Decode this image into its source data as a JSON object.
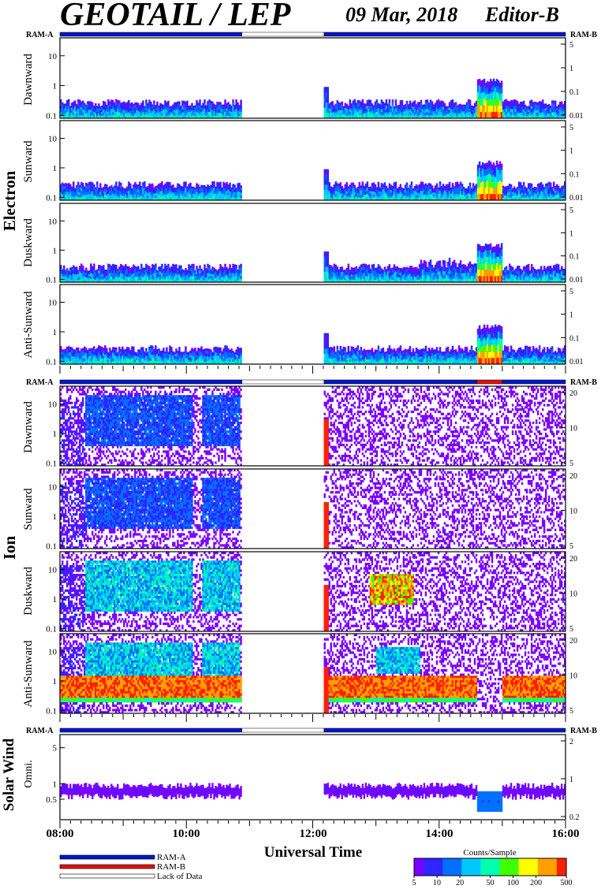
{
  "header": {
    "title": "GEOTAIL / LEP",
    "date": "09 Mar, 2018",
    "editor": "Editor-B"
  },
  "ram_labels": {
    "left": "RAM-A",
    "right": "RAM-B"
  },
  "groups": {
    "electron": "Electron",
    "ion": "Ion",
    "solar_wind": "Solar Wind"
  },
  "panel_labels": {
    "dawnward": "Dawnward",
    "sunward": "Sunward",
    "duskward": "Duskward",
    "anti_sunward": "Anti-Sunward",
    "omni": "Omni."
  },
  "colors": {
    "ram_a": "#0018c8",
    "ram_b": "#e01010",
    "lack_of_data": "#ffffff",
    "colormap": [
      "#7a00ff",
      "#2f25ff",
      "#0070ff",
      "#00c8ff",
      "#00ffb0",
      "#40ff00",
      "#ffff00",
      "#ffa000",
      "#ff2000"
    ]
  },
  "legend": {
    "items": [
      "RAM-A",
      "RAM-B",
      "Lack of Data"
    ],
    "colorbar_title": "Counts/Sample",
    "colorbar_ticks": [
      "5",
      "10",
      "20",
      "50",
      "100",
      "200",
      "500"
    ]
  },
  "axis": {
    "xlabel": "Universal Time",
    "ticks": [
      "08:00",
      "10:00",
      "12:00",
      "14:00",
      "16:00"
    ]
  },
  "chart_data": {
    "type": "heatmap",
    "x_range_hours": [
      8,
      16
    ],
    "x_tick_hours": [
      8,
      10,
      12,
      14,
      16
    ],
    "status_bar": {
      "segments": [
        {
          "start": 8.0,
          "end": 10.88,
          "state": "RAM-A"
        },
        {
          "start": 10.88,
          "end": 12.18,
          "state": "Lack of Data"
        },
        {
          "start": 12.18,
          "end": 16.0,
          "state": "RAM-A"
        }
      ],
      "ion_segments": [
        {
          "start": 8.0,
          "end": 10.88,
          "state": "RAM-A"
        },
        {
          "start": 10.88,
          "end": 12.18,
          "state": "Lack of Data"
        },
        {
          "start": 12.18,
          "end": 14.6,
          "state": "RAM-A"
        },
        {
          "start": 14.6,
          "end": 15.0,
          "state": "RAM-B"
        },
        {
          "start": 15.0,
          "end": 16.0,
          "state": "RAM-A"
        }
      ]
    },
    "data_gap_hours": [
      10.88,
      12.18
    ],
    "electron_left_ticks": [
      "0.1",
      "1",
      "10"
    ],
    "electron_right_ticks": [
      "0.01",
      "0.1",
      "1",
      "5"
    ],
    "ion_left_ticks": [
      "0.1",
      "1",
      "10"
    ],
    "ion_right_ticks": [
      "5",
      "10",
      "20"
    ],
    "solar_wind_left_ticks": [
      "0.5",
      "1",
      "5"
    ],
    "solar_wind_right_ticks": [
      "0.2",
      "1",
      "2"
    ],
    "panels": [
      {
        "group": "electron",
        "label": "Dawnward",
        "ymin": 0.08,
        "ymax": 40
      },
      {
        "group": "electron",
        "label": "Sunward",
        "ymin": 0.08,
        "ymax": 40
      },
      {
        "group": "electron",
        "label": "Duskward",
        "ymin": 0.08,
        "ymax": 40
      },
      {
        "group": "electron",
        "label": "Anti-Sunward",
        "ymin": 0.08,
        "ymax": 40
      },
      {
        "group": "ion",
        "label": "Dawnward",
        "ymin": 0.08,
        "ymax": 40
      },
      {
        "group": "ion",
        "label": "Sunward",
        "ymin": 0.08,
        "ymax": 40
      },
      {
        "group": "ion",
        "label": "Duskward",
        "ymin": 0.08,
        "ymax": 40
      },
      {
        "group": "ion",
        "label": "Anti-Sunward",
        "ymin": 0.08,
        "ymax": 40
      },
      {
        "group": "solar_wind",
        "label": "Omni.",
        "ymin": 0.2,
        "ymax": 9
      }
    ]
  }
}
